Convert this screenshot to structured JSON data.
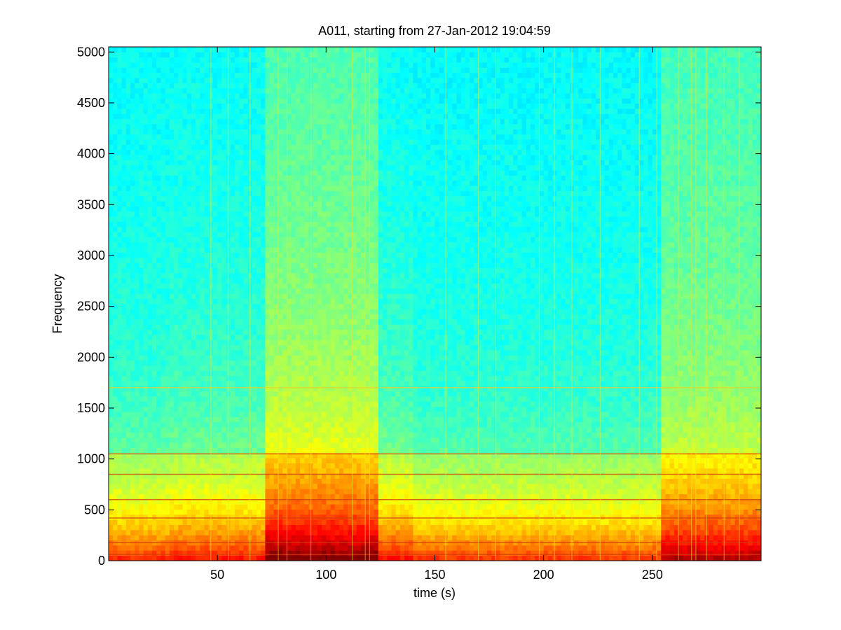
{
  "chart_data": {
    "type": "heatmap",
    "title": "A011, starting from 27-Jan-2012 19:04:59",
    "xlabel": "time (s)",
    "ylabel": "Frequency",
    "xlim": [
      0,
      300
    ],
    "ylim": [
      0,
      5050
    ],
    "xticks": [
      50,
      100,
      150,
      200,
      250
    ],
    "yticks": [
      0,
      500,
      1000,
      1500,
      2000,
      2500,
      3000,
      3500,
      4000,
      4500,
      5000
    ],
    "grid": false,
    "colormap": "jet",
    "colors": {
      "low": "#1ce8e0",
      "mid": "#f6f62a",
      "high": "#e81e14"
    },
    "description": "Spectrogram; broadband energy bursts approx. 73-125 s and 255-295 s; strong low-frequency energy below ~1000; tonal lines near 60, 600, 850, 1050, 1700",
    "band_regions": [
      {
        "t_start": 0,
        "t_end": 28,
        "level": 0.35
      },
      {
        "t_start": 28,
        "t_end": 73,
        "level": 0.42
      },
      {
        "t_start": 73,
        "t_end": 125,
        "level": 0.8
      },
      {
        "t_start": 125,
        "t_end": 140,
        "level": 0.45
      },
      {
        "t_start": 140,
        "t_end": 255,
        "level": 0.3
      },
      {
        "t_start": 255,
        "t_end": 300,
        "level": 0.6
      }
    ],
    "horizontal_lines_hz": [
      60,
      180,
      420,
      600,
      850,
      1050,
      1700
    ],
    "vertical_streaks_s": [
      47,
      55,
      65,
      78,
      82,
      93,
      112,
      118,
      120,
      155,
      170,
      178,
      198,
      205,
      213,
      226,
      244,
      252,
      262,
      268,
      270,
      275,
      283,
      290
    ]
  }
}
